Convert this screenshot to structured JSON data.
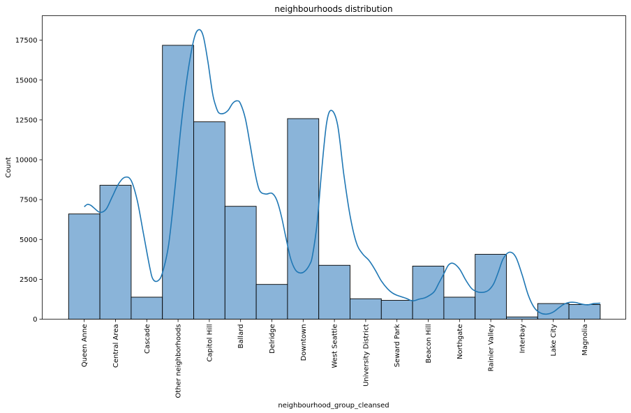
{
  "chart_data": {
    "type": "bar",
    "title": "neighbourhoods distribution",
    "xlabel": "neighbourhood_group_cleansed",
    "ylabel": "Count",
    "ylim": [
      0,
      19000
    ],
    "yticks": [
      0,
      2500,
      5000,
      7500,
      10000,
      12500,
      15000,
      17500
    ],
    "grid": false,
    "legend": "none",
    "bar_color": "#8ab4d9",
    "bar_edge_color": "#000000",
    "kde_color": "#1f77b4",
    "categories": [
      "Queen Anne",
      "Central Area",
      "Cascade",
      "Other neighborhoods",
      "Capitol Hill",
      "Ballard",
      "Delridge",
      "Downtown",
      "West Seattle",
      "University District",
      "Seward Park",
      "Beacon Hill",
      "Northgate",
      "Rainier Valley",
      "Interbay",
      "Lake City",
      "Magnolia"
    ],
    "values": [
      6600,
      8400,
      1380,
      17180,
      12380,
      7080,
      2180,
      12580,
      3380,
      1280,
      1180,
      3330,
      1380,
      4070,
      140,
      980,
      920
    ],
    "kde": {
      "x": [
        0,
        0.1,
        0.2,
        0.3,
        0.5,
        0.7,
        0.9,
        1.1,
        1.3,
        1.5,
        1.7,
        1.9,
        2.1,
        2.2,
        2.35,
        2.5,
        2.7,
        2.9,
        3.1,
        3.3,
        3.5,
        3.65,
        3.8,
        3.95,
        4.1,
        4.2,
        4.3,
        4.45,
        4.6,
        4.75,
        4.9,
        5.0,
        5.15,
        5.3,
        5.45,
        5.6,
        5.8,
        6.0,
        6.15,
        6.3,
        6.45,
        6.6,
        6.75,
        6.9,
        7.05,
        7.2,
        7.3,
        7.45,
        7.6,
        7.75,
        7.9,
        8.1,
        8.3,
        8.5,
        8.7,
        8.9,
        9.1,
        9.3,
        9.5,
        9.7,
        9.85,
        10.0,
        10.15,
        10.3,
        10.5,
        10.7,
        10.9,
        11.05,
        11.2,
        11.35,
        11.5,
        11.65,
        11.8,
        12.0,
        12.2,
        12.4,
        12.6,
        12.8,
        12.95,
        13.1,
        13.25,
        13.4,
        13.6,
        13.8,
        14.0,
        14.2,
        14.4,
        14.6,
        14.8,
        15.0,
        15.2,
        15.35,
        15.5,
        15.7,
        15.9,
        16.1,
        16.3,
        16.5
      ],
      "y": [
        7050,
        7200,
        7150,
        7000,
        6700,
        6900,
        7700,
        8500,
        8900,
        8700,
        7400,
        5300,
        3200,
        2500,
        2400,
        2900,
        4700,
        8200,
        12200,
        15300,
        17500,
        18150,
        17800,
        16200,
        14200,
        13400,
        12950,
        12900,
        13100,
        13550,
        13700,
        13500,
        12600,
        11000,
        9300,
        8100,
        7850,
        7900,
        7500,
        6500,
        5100,
        3800,
        3100,
        2900,
        3000,
        3400,
        4000,
        6100,
        9500,
        12300,
        13100,
        12200,
        9100,
        6500,
        4800,
        4100,
        3700,
        3100,
        2400,
        1900,
        1650,
        1500,
        1400,
        1300,
        1150,
        1250,
        1350,
        1500,
        1750,
        2300,
        2850,
        3400,
        3500,
        3150,
        2450,
        1900,
        1700,
        1700,
        1850,
        2250,
        3000,
        3800,
        4200,
        3900,
        2800,
        1500,
        700,
        380,
        320,
        450,
        750,
        950,
        1050,
        1050,
        950,
        900,
        980,
        1000
      ]
    }
  }
}
